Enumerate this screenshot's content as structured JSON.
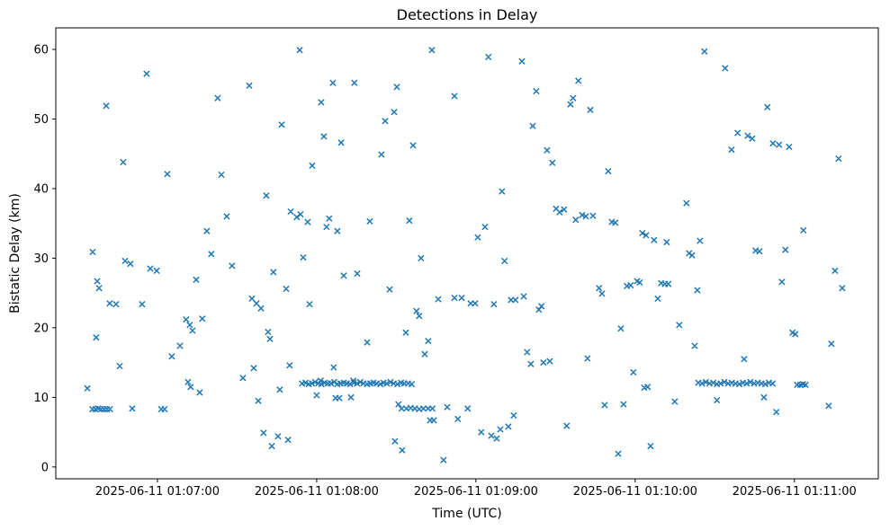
{
  "chart_data": {
    "type": "scatter",
    "title": "Detections in Delay",
    "xlabel": "Time (UTC)",
    "ylabel": "Bistatic Delay (km)",
    "marker": "x",
    "marker_color": "#1f77b4",
    "grid": false,
    "legend": "none",
    "x_unit": "seconds after 2025-06-11 01:06:00 UTC",
    "xlim": [
      21.7,
      331.6
    ],
    "ylim": [
      -1.7,
      63.1
    ],
    "x_ticks": [
      {
        "value": 60,
        "label": "2025-06-11 01:07:00"
      },
      {
        "value": 120,
        "label": "2025-06-11 01:08:00"
      },
      {
        "value": 180,
        "label": "2025-06-11 01:09:00"
      },
      {
        "value": 240,
        "label": "2025-06-11 01:10:00"
      },
      {
        "value": 300,
        "label": "2025-06-11 01:11:00"
      }
    ],
    "y_ticks": [
      0,
      10,
      20,
      30,
      40,
      50,
      60
    ],
    "points": [
      [
        33.6,
        11.3
      ],
      [
        35.5,
        8.3
      ],
      [
        35.6,
        30.9
      ],
      [
        36.6,
        8.3
      ],
      [
        36.9,
        18.6
      ],
      [
        37.3,
        26.7
      ],
      [
        37.7,
        8.4
      ],
      [
        38.0,
        25.7
      ],
      [
        38.8,
        8.3
      ],
      [
        39.9,
        8.3
      ],
      [
        40.7,
        51.9
      ],
      [
        41.0,
        8.3
      ],
      [
        42.0,
        23.5
      ],
      [
        42.1,
        8.3
      ],
      [
        44.4,
        23.4
      ],
      [
        45.8,
        14.5
      ],
      [
        47.1,
        43.8
      ],
      [
        47.8,
        29.6
      ],
      [
        49.8,
        29.2
      ],
      [
        50.5,
        8.4
      ],
      [
        54.2,
        23.4
      ],
      [
        55.9,
        56.5
      ],
      [
        57.3,
        28.5
      ],
      [
        59.7,
        28.2
      ],
      [
        61.4,
        8.3
      ],
      [
        62.7,
        8.3
      ],
      [
        63.7,
        42.1
      ],
      [
        65.4,
        15.9
      ],
      [
        68.5,
        17.4
      ],
      [
        70.8,
        21.2
      ],
      [
        71.5,
        12.2
      ],
      [
        72.2,
        20.4
      ],
      [
        72.5,
        11.5
      ],
      [
        73.2,
        19.6
      ],
      [
        74.6,
        26.9
      ],
      [
        75.9,
        10.7
      ],
      [
        76.9,
        21.3
      ],
      [
        78.6,
        33.9
      ],
      [
        80.3,
        30.6
      ],
      [
        82.7,
        53.0
      ],
      [
        84.1,
        42.0
      ],
      [
        86.1,
        36.0
      ],
      [
        88.1,
        28.9
      ],
      [
        92.2,
        12.8
      ],
      [
        94.6,
        54.8
      ],
      [
        95.6,
        24.2
      ],
      [
        96.3,
        14.2
      ],
      [
        97.3,
        23.5
      ],
      [
        98.0,
        9.5
      ],
      [
        99.0,
        22.8
      ],
      [
        100.0,
        4.9
      ],
      [
        101.0,
        39.0
      ],
      [
        101.7,
        19.4
      ],
      [
        102.4,
        18.4
      ],
      [
        103.1,
        3.0
      ],
      [
        103.7,
        28.0
      ],
      [
        105.4,
        4.4
      ],
      [
        106.1,
        11.1
      ],
      [
        106.8,
        49.2
      ],
      [
        108.5,
        25.6
      ],
      [
        109.2,
        3.9
      ],
      [
        109.8,
        14.6
      ],
      [
        110.2,
        36.7
      ],
      [
        112.5,
        35.9
      ],
      [
        113.6,
        59.9
      ],
      [
        113.9,
        36.3
      ],
      [
        114.5,
        12.0
      ],
      [
        114.9,
        30.1
      ],
      [
        115.8,
        12.1
      ],
      [
        116.6,
        35.2
      ],
      [
        117.0,
        11.9
      ],
      [
        117.3,
        23.4
      ],
      [
        118.2,
        12.0
      ],
      [
        118.3,
        43.3
      ],
      [
        119.4,
        12.2
      ],
      [
        120.0,
        10.3
      ],
      [
        120.6,
        12.0
      ],
      [
        121.5,
        12.4
      ],
      [
        121.7,
        52.4
      ],
      [
        121.8,
        11.9
      ],
      [
        122.7,
        47.5
      ],
      [
        123.0,
        12.1
      ],
      [
        123.7,
        34.5
      ],
      [
        124.2,
        12.0
      ],
      [
        124.7,
        35.7
      ],
      [
        125.4,
        12.0
      ],
      [
        126.1,
        55.2
      ],
      [
        126.4,
        14.3
      ],
      [
        126.6,
        12.2
      ],
      [
        127.1,
        9.9
      ],
      [
        127.8,
        33.9
      ],
      [
        127.8,
        11.9
      ],
      [
        128.5,
        9.9
      ],
      [
        129.0,
        12.0
      ],
      [
        129.2,
        46.6
      ],
      [
        130.2,
        12.1
      ],
      [
        130.2,
        27.5
      ],
      [
        131.4,
        12.0
      ],
      [
        132.6,
        11.9
      ],
      [
        132.9,
        10.0
      ],
      [
        133.8,
        12.4
      ],
      [
        134.0,
        12.1
      ],
      [
        134.2,
        55.2
      ],
      [
        135.2,
        12.0
      ],
      [
        135.3,
        27.8
      ],
      [
        136.4,
        12.2
      ],
      [
        137.6,
        12.0
      ],
      [
        139.0,
        11.9
      ],
      [
        139.0,
        17.9
      ],
      [
        140.0,
        35.3
      ],
      [
        140.2,
        12.0
      ],
      [
        141.4,
        12.1
      ],
      [
        142.6,
        12.0
      ],
      [
        144.0,
        11.9
      ],
      [
        144.4,
        44.9
      ],
      [
        145.2,
        12.1
      ],
      [
        145.8,
        49.7
      ],
      [
        146.4,
        12.0
      ],
      [
        147.5,
        25.5
      ],
      [
        147.8,
        12.2
      ],
      [
        149.0,
        12.0
      ],
      [
        149.2,
        51.0
      ],
      [
        149.5,
        3.7
      ],
      [
        150.2,
        54.6
      ],
      [
        150.4,
        11.9
      ],
      [
        150.8,
        9.0
      ],
      [
        151.8,
        12.1
      ],
      [
        152.0,
        8.4
      ],
      [
        152.2,
        2.4
      ],
      [
        153.0,
        12.0
      ],
      [
        153.6,
        19.3
      ],
      [
        153.8,
        8.4
      ],
      [
        154.4,
        12.0
      ],
      [
        154.9,
        35.4
      ],
      [
        155.4,
        8.5
      ],
      [
        155.8,
        11.9
      ],
      [
        156.3,
        46.2
      ],
      [
        157.0,
        8.4
      ],
      [
        157.6,
        22.4
      ],
      [
        158.6,
        8.3
      ],
      [
        158.6,
        21.7
      ],
      [
        159.3,
        30.0
      ],
      [
        160.2,
        8.4
      ],
      [
        160.7,
        16.2
      ],
      [
        162.0,
        18.1
      ],
      [
        162.0,
        8.4
      ],
      [
        162.7,
        6.7
      ],
      [
        163.4,
        59.9
      ],
      [
        163.6,
        8.4
      ],
      [
        164.1,
        6.7
      ],
      [
        165.8,
        24.1
      ],
      [
        167.8,
        1.0
      ],
      [
        169.2,
        8.6
      ],
      [
        171.9,
        24.3
      ],
      [
        171.9,
        53.3
      ],
      [
        173.2,
        6.9
      ],
      [
        174.6,
        24.3
      ],
      [
        176.9,
        8.4
      ],
      [
        178.0,
        23.5
      ],
      [
        179.7,
        23.5
      ],
      [
        180.7,
        33.0
      ],
      [
        182.0,
        5.0
      ],
      [
        183.4,
        34.5
      ],
      [
        184.7,
        58.9
      ],
      [
        185.8,
        4.5
      ],
      [
        186.8,
        23.4
      ],
      [
        187.8,
        4.1
      ],
      [
        189.2,
        5.4
      ],
      [
        189.8,
        39.6
      ],
      [
        190.8,
        29.6
      ],
      [
        192.2,
        5.8
      ],
      [
        193.2,
        24.0
      ],
      [
        194.2,
        7.4
      ],
      [
        194.9,
        24.0
      ],
      [
        197.3,
        58.3
      ],
      [
        198.0,
        24.5
      ],
      [
        199.3,
        16.5
      ],
      [
        200.7,
        14.8
      ],
      [
        201.4,
        49.0
      ],
      [
        202.7,
        54.0
      ],
      [
        203.7,
        22.6
      ],
      [
        204.7,
        23.1
      ],
      [
        205.4,
        15.0
      ],
      [
        206.8,
        45.5
      ],
      [
        207.8,
        15.2
      ],
      [
        208.8,
        43.7
      ],
      [
        210.2,
        37.1
      ],
      [
        211.5,
        36.6
      ],
      [
        213.2,
        37.0
      ],
      [
        214.2,
        5.9
      ],
      [
        215.6,
        52.1
      ],
      [
        216.6,
        53.0
      ],
      [
        217.6,
        35.5
      ],
      [
        218.6,
        55.5
      ],
      [
        220.0,
        36.2
      ],
      [
        221.4,
        36.0
      ],
      [
        222.0,
        15.6
      ],
      [
        223.1,
        51.3
      ],
      [
        224.1,
        36.1
      ],
      [
        226.4,
        25.7
      ],
      [
        227.5,
        24.9
      ],
      [
        228.5,
        8.9
      ],
      [
        229.8,
        42.5
      ],
      [
        231.2,
        35.2
      ],
      [
        232.5,
        35.1
      ],
      [
        233.6,
        1.9
      ],
      [
        234.6,
        19.9
      ],
      [
        235.6,
        9.0
      ],
      [
        236.9,
        26.0
      ],
      [
        238.3,
        26.1
      ],
      [
        239.3,
        13.6
      ],
      [
        240.7,
        26.7
      ],
      [
        241.7,
        26.5
      ],
      [
        242.7,
        33.6
      ],
      [
        243.4,
        11.4
      ],
      [
        244.1,
        33.3
      ],
      [
        244.7,
        11.5
      ],
      [
        245.8,
        3.0
      ],
      [
        247.1,
        32.6
      ],
      [
        248.5,
        24.2
      ],
      [
        249.8,
        26.4
      ],
      [
        251.2,
        26.3
      ],
      [
        251.9,
        32.3
      ],
      [
        252.5,
        26.3
      ],
      [
        254.9,
        9.4
      ],
      [
        256.6,
        20.4
      ],
      [
        259.3,
        37.9
      ],
      [
        260.3,
        30.7
      ],
      [
        261.4,
        30.4
      ],
      [
        262.4,
        17.4
      ],
      [
        263.4,
        25.4
      ],
      [
        263.8,
        12.1
      ],
      [
        264.4,
        32.5
      ],
      [
        265.2,
        12.0
      ],
      [
        266.1,
        59.7
      ],
      [
        266.6,
        12.2
      ],
      [
        268.0,
        12.0
      ],
      [
        269.4,
        12.1
      ],
      [
        270.8,
        11.9
      ],
      [
        270.8,
        9.6
      ],
      [
        272.2,
        12.0
      ],
      [
        273.6,
        12.2
      ],
      [
        273.9,
        57.3
      ],
      [
        275.0,
        12.0
      ],
      [
        276.3,
        45.6
      ],
      [
        276.4,
        12.1
      ],
      [
        277.8,
        12.0
      ],
      [
        278.6,
        48.0
      ],
      [
        279.2,
        11.9
      ],
      [
        280.6,
        12.1
      ],
      [
        281.0,
        15.5
      ],
      [
        282.0,
        12.0
      ],
      [
        282.4,
        47.6
      ],
      [
        283.4,
        12.2
      ],
      [
        284.1,
        47.2
      ],
      [
        284.8,
        12.0
      ],
      [
        285.4,
        31.1
      ],
      [
        286.2,
        12.1
      ],
      [
        286.8,
        31.0
      ],
      [
        287.6,
        12.0
      ],
      [
        288.5,
        10.0
      ],
      [
        289.0,
        11.9
      ],
      [
        289.8,
        51.7
      ],
      [
        290.4,
        12.1
      ],
      [
        291.8,
        12.0
      ],
      [
        291.9,
        46.5
      ],
      [
        293.2,
        7.9
      ],
      [
        294.2,
        46.3
      ],
      [
        295.3,
        26.6
      ],
      [
        296.6,
        31.2
      ],
      [
        298.0,
        46.0
      ],
      [
        299.3,
        19.3
      ],
      [
        300.3,
        19.1
      ],
      [
        301.0,
        11.8
      ],
      [
        302.2,
        11.8
      ],
      [
        303.2,
        11.9
      ],
      [
        303.4,
        34.0
      ],
      [
        304.2,
        11.8
      ],
      [
        312.9,
        8.8
      ],
      [
        313.9,
        17.7
      ],
      [
        315.3,
        28.2
      ],
      [
        316.6,
        44.3
      ],
      [
        318.0,
        25.7
      ]
    ]
  }
}
